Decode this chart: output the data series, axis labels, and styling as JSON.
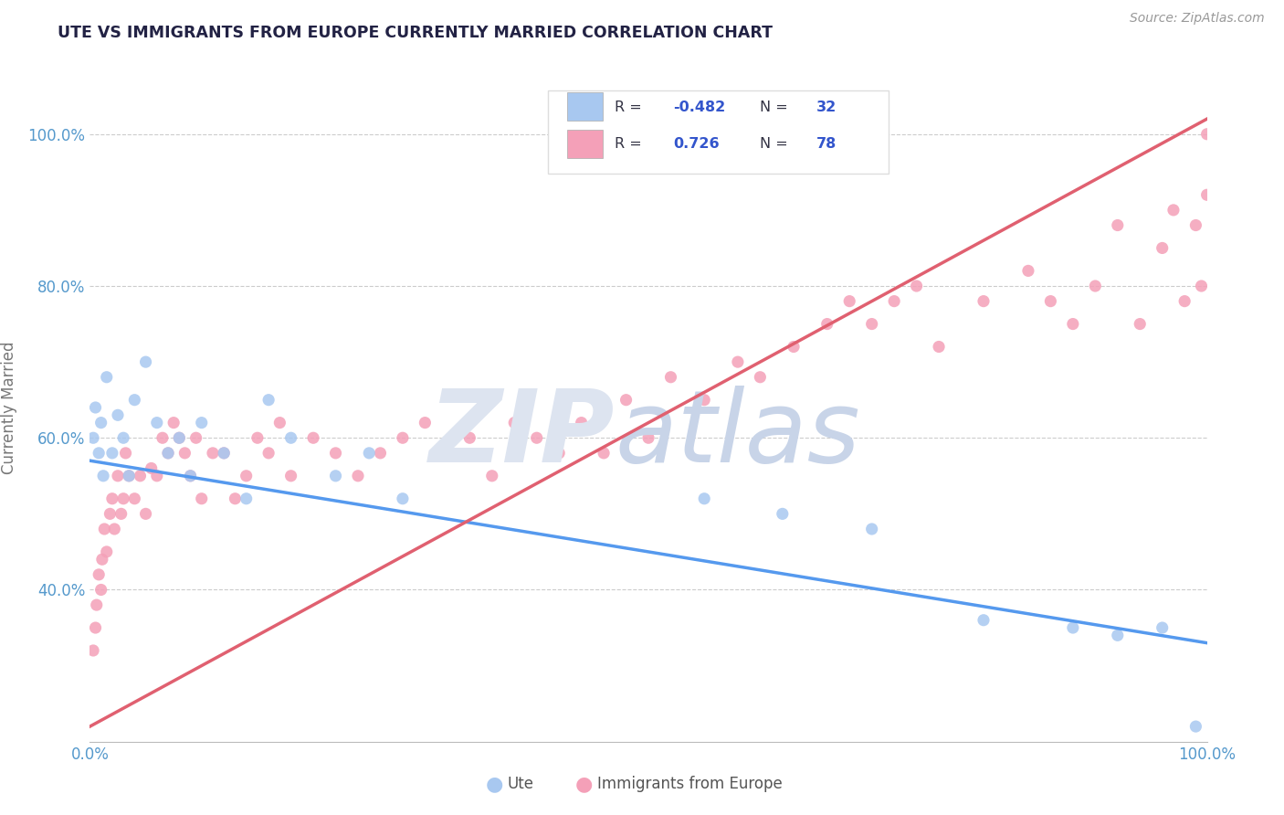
{
  "title": "UTE VS IMMIGRANTS FROM EUROPE CURRENTLY MARRIED CORRELATION CHART",
  "source_text": "Source: ZipAtlas.com",
  "ylabel": "Currently Married",
  "blue_R": -0.482,
  "blue_N": 32,
  "pink_R": 0.726,
  "pink_N": 78,
  "blue_scatter_color": "#a8c8f0",
  "pink_scatter_color": "#f4a0b8",
  "blue_line_color": "#5599ee",
  "pink_line_color": "#e06070",
  "background_color": "#ffffff",
  "grid_color": "#cccccc",
  "title_color": "#222244",
  "source_color": "#999999",
  "tick_color": "#5599cc",
  "label_color": "#777777",
  "legend_R_color": "#3355cc",
  "blue_line_x0": 0,
  "blue_line_y0": 57,
  "blue_line_x1": 100,
  "blue_line_y1": 33,
  "pink_line_x0": 0,
  "pink_line_y0": 22,
  "pink_line_x1": 100,
  "pink_line_y1": 102,
  "ylim_min": 20,
  "ylim_max": 108,
  "xlim_min": 0,
  "xlim_max": 100,
  "y_ticks": [
    40,
    60,
    80,
    100
  ],
  "watermark_ZIP_color": "#dde4f0",
  "watermark_atlas_color": "#c8d4e8",
  "scatter_size": 90
}
